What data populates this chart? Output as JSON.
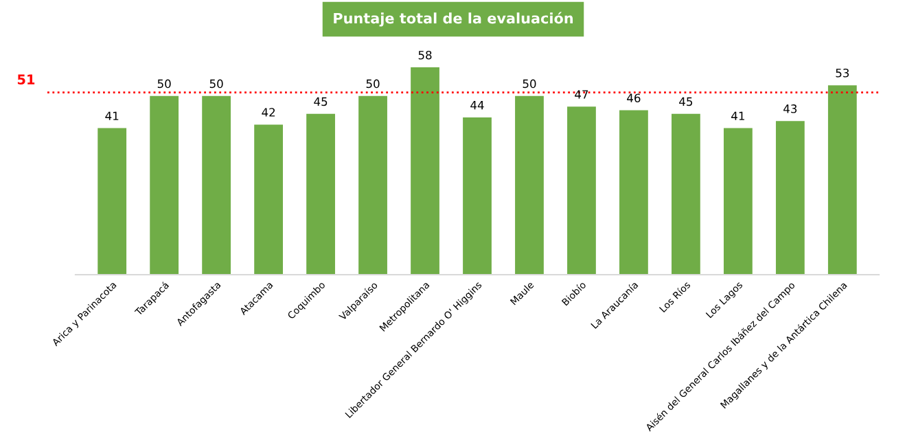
{
  "chart_data": {
    "type": "bar",
    "title": "Puntaje total de la evaluación",
    "categories": [
      "Arica y Parinacota",
      "Tarapacá",
      "Antofagasta",
      "Atacama",
      "Coquimbo",
      "Valparaíso",
      "Metropolitana",
      "Libertador General Bernardo O' Higgins",
      "Maule",
      "Biobío",
      "La Araucanía",
      "Los Ríos",
      "Los Lagos",
      "Aisén del General Carlos Ibáñez del Campo",
      "Magallanes y de la Antártica Chilena"
    ],
    "values": [
      41,
      50,
      50,
      42,
      45,
      50,
      58,
      44,
      50,
      47,
      46,
      45,
      41,
      43,
      53
    ],
    "color": "#70ad47",
    "data_labels": true,
    "grid": false,
    "legend": false,
    "ref_lines": [
      {
        "axis": "y",
        "value": 51,
        "label": "51",
        "color": "#ff0000",
        "line_style": "dotted"
      }
    ]
  }
}
